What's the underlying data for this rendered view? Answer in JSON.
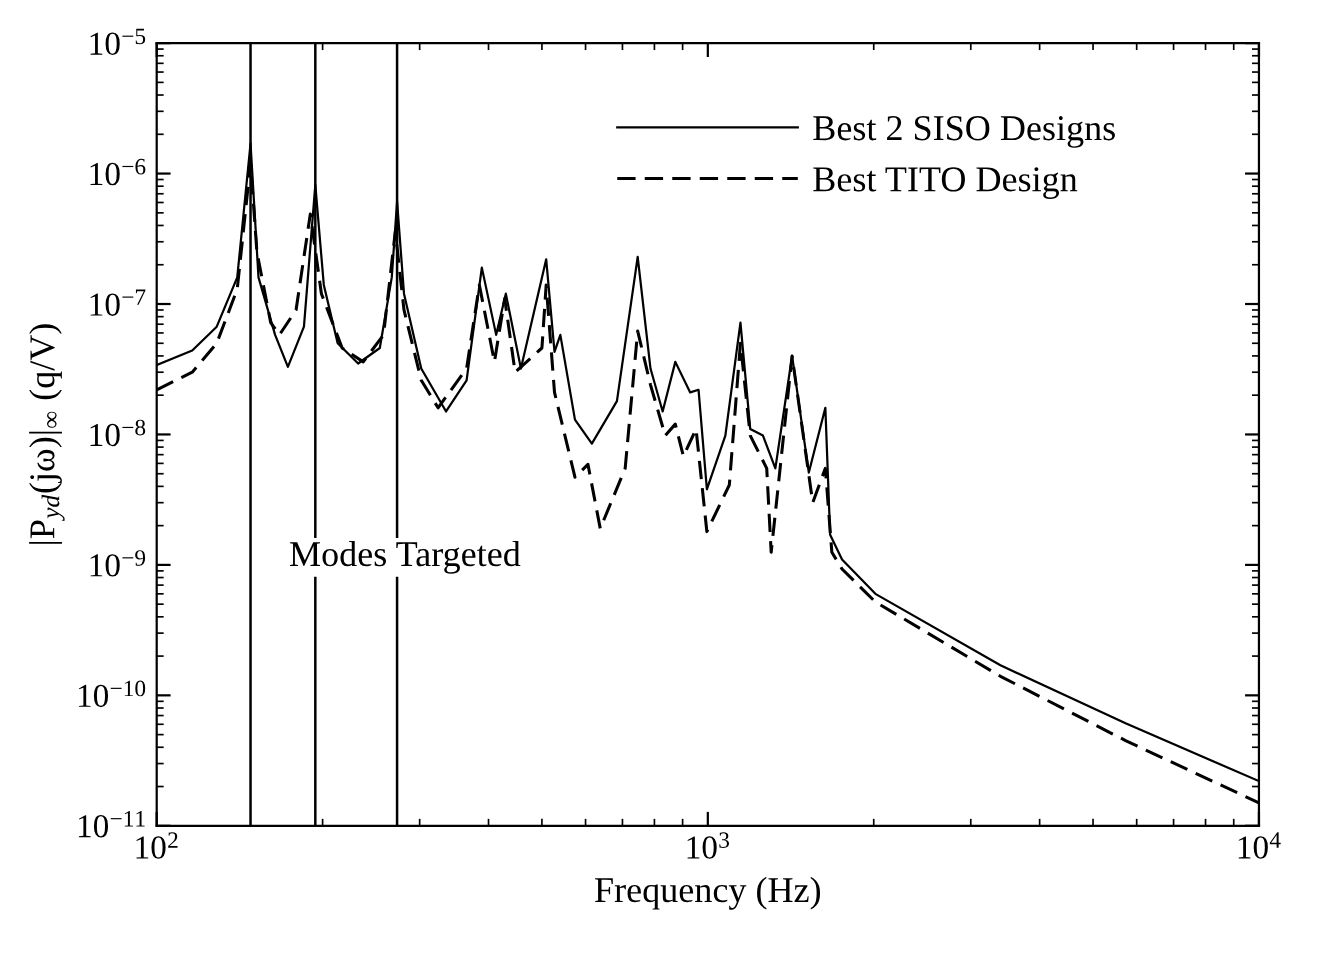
{
  "chart_data": {
    "type": "line",
    "xlabel": "Frequency (Hz)",
    "ylabel": "|P$_{yd}$(jω)|$_{∞}$ (q/V)",
    "log": "xy",
    "xlim": [
      100,
      10000
    ],
    "ylim": [
      1e-11,
      1e-05
    ],
    "xticks": [
      {
        "value": 100,
        "label": "10$^{2}$"
      },
      {
        "value": 1000,
        "label": "10$^{3}$"
      },
      {
        "value": 10000,
        "label": "10$^{4}$"
      }
    ],
    "yticks": [
      {
        "value": 1e-11,
        "label": "10$^{−11}$"
      },
      {
        "value": 1e-10,
        "label": "10$^{−10}$"
      },
      {
        "value": 1e-09,
        "label": "10$^{−9}$"
      },
      {
        "value": 1e-08,
        "label": "10$^{−8}$"
      },
      {
        "value": 1e-07,
        "label": "10$^{−7}$"
      },
      {
        "value": 1e-06,
        "label": "10$^{−6}$"
      },
      {
        "value": 1e-05,
        "label": "10$^{−5}$"
      }
    ],
    "grid": false,
    "legend": "top right",
    "series": [
      {
        "name": "Best 2 SISO Designs",
        "color": "#000000",
        "line_style": "solid",
        "x": [
          100,
          116,
          128.5,
          140,
          148,
          153,
          164,
          173,
          185,
          194,
          201,
          213,
          232,
          254,
          267,
          273,
          281,
          302,
          335,
          365,
          389,
          413,
          430,
          458,
          509,
          527,
          540,
          574,
          616,
          684,
          746,
          787,
          828,
          873,
          929,
          962,
          996,
          1076,
          1146,
          1194,
          1259,
          1326,
          1422,
          1525,
          1634,
          1667,
          1752,
          2014,
          3396,
          5728,
          10000
        ],
        "values": [
          3.4e-08,
          4.4e-08,
          6.7e-08,
          1.6e-07,
          1.7e-06,
          1.6e-07,
          5.8e-08,
          3.3e-08,
          6.7e-08,
          8.2e-07,
          1.4e-07,
          5e-08,
          3.5e-08,
          4.6e-08,
          1.6e-07,
          6.1e-07,
          1.2e-07,
          3.2e-08,
          1.5e-08,
          2.6e-08,
          1.9e-07,
          5.8e-08,
          1.2e-07,
          3.2e-08,
          2.2e-07,
          4.3e-08,
          5.8e-08,
          1.3e-08,
          8.5e-09,
          1.8e-08,
          2.3e-07,
          3.2e-08,
          1.5e-08,
          3.6e-08,
          2.1e-08,
          2.2e-08,
          3.8e-09,
          9.8e-09,
          7.2e-08,
          1.1e-08,
          9.8e-09,
          5.5e-09,
          4e-08,
          5.1e-09,
          1.6e-08,
          1.7e-09,
          1.1e-09,
          6e-10,
          1.7e-10,
          6.1e-11,
          2.2e-11
        ]
      },
      {
        "name": "Best TITO Design",
        "color": "#000000",
        "line_style": "dashed",
        "x": [
          100,
          116,
          128.5,
          140,
          148,
          152,
          161,
          167,
          179,
          190,
          199,
          217,
          237,
          258,
          271,
          281,
          302,
          324,
          365,
          385,
          410,
          428,
          447,
          500,
          509,
          527,
          574,
          606,
          638,
          708,
          746,
          787,
          837,
          873,
          903,
          952,
          996,
          1094,
          1146,
          1194,
          1279,
          1303,
          1422,
          1550,
          1634,
          1679,
          1752,
          2014,
          3396,
          5728,
          10000
        ],
        "values": [
          2.2e-08,
          3e-08,
          5e-08,
          1.3e-07,
          1.2e-06,
          2.5e-07,
          7.2e-08,
          5.8e-08,
          9e-08,
          4.9e-07,
          1.2e-07,
          4.6e-08,
          3.6e-08,
          5.8e-08,
          3.6e-07,
          9e-08,
          2.6e-08,
          1.6e-08,
          3.2e-08,
          1.4e-07,
          3.6e-08,
          1.1e-07,
          3e-08,
          4.6e-08,
          1.4e-07,
          2.1e-08,
          4.7e-09,
          5.9e-09,
          1.9e-09,
          5.5e-09,
          6.2e-08,
          2.4e-08,
          9.8e-09,
          1.2e-08,
          6.8e-09,
          1.1e-08,
          1.8e-09,
          4.1e-09,
          5e-08,
          9.8e-09,
          5.5e-09,
          1.25e-09,
          4e-08,
          3e-09,
          5.5e-09,
          1.25e-09,
          9.3e-10,
          5.2e-10,
          1.4e-10,
          4.5e-11,
          1.5e-11
        ]
      }
    ],
    "ref_lines": [
      {
        "axis": "x",
        "value": 148,
        "color": "#000000"
      },
      {
        "axis": "x",
        "value": 194,
        "color": "#000000"
      },
      {
        "axis": "x",
        "value": 273,
        "color": "#000000"
      }
    ],
    "annotations": [
      "Modes Targeted"
    ]
  }
}
